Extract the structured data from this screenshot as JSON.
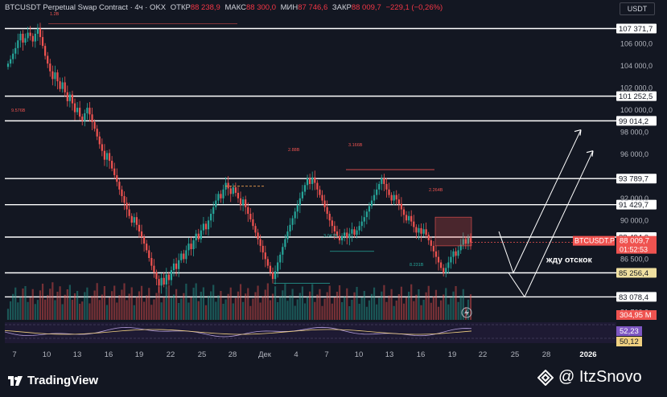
{
  "header": {
    "symbol": "BTCUSDT Perpetual Swap Contract · 4ч · OKX",
    "open_label": "ОТКР",
    "open": "88 238,9",
    "high_label": "МАКС",
    "high": "88 300,0",
    "low_label": "МИН",
    "low": "87 746,6",
    "close_label": "ЗАКР",
    "close": "88 009,7",
    "change": "−229,1 (−0,26%)"
  },
  "currency": "USDT",
  "branding": {
    "platform": "TradingView",
    "author": "@ ItzSnovo"
  },
  "colors": {
    "up": "#26a69a",
    "down": "#ef5350",
    "level": "#ffffff",
    "bg": "#131722"
  },
  "chart_data": {
    "type": "candlestick",
    "timeframe": "4ч",
    "exchange": "OKX",
    "ylim": [
      81000,
      108500
    ],
    "price_axis_ticks": [
      "106 000,0",
      "104 000,0",
      "102 000,0",
      "100 000,0",
      "98 000,0",
      "96 000,0",
      "92 000,0",
      "90 000,0",
      "86 500,0",
      "81 700,0"
    ],
    "x_ticks": [
      "7",
      "10",
      "13",
      "16",
      "19",
      "22",
      "25",
      "28",
      "Дек",
      "4",
      "7",
      "10",
      "13",
      "16",
      "19",
      "22",
      "25",
      "28",
      "2026"
    ],
    "levels": [
      {
        "value": 107371.7,
        "label": "107 371,7"
      },
      {
        "value": 101252.5,
        "label": "101 252,5"
      },
      {
        "value": 99014.2,
        "label": "99 014,2"
      },
      {
        "value": 93789.7,
        "label": "93 789,7"
      },
      {
        "value": 91429.7,
        "label": "91 429,7"
      },
      {
        "value": 88494.0,
        "label": "88 494,0"
      },
      {
        "value": 85256.4,
        "label": "85 256,4",
        "highlight": "#f0e0a0"
      },
      {
        "value": 83078.4,
        "label": "83 078,4"
      }
    ],
    "current_price": {
      "label": "BTCUSDT.P",
      "value": "88 009,7",
      "countdown": "01:52:53"
    },
    "volume_label": "304,95 M",
    "volume_annotations": [
      "1.2B",
      "9.576B",
      "2.88B",
      "3.166B",
      "2.264B",
      "3.047B",
      "8.231B"
    ],
    "close_series": [
      104200,
      104600,
      105100,
      105600,
      106300,
      106900,
      106100,
      106500,
      107000,
      106700,
      106200,
      106900,
      107371,
      106600,
      105800,
      104900,
      104200,
      103500,
      102800,
      103400,
      102600,
      101900,
      102500,
      101600,
      100800,
      101400,
      100600,
      99800,
      100200,
      99400,
      99014,
      99700,
      100200,
      99600,
      98900,
      98300,
      97600,
      96900,
      96300,
      95500,
      96100,
      95400,
      94700,
      94100,
      93500,
      92800,
      92200,
      91600,
      91000,
      90400,
      89800,
      90300,
      89600,
      89000,
      88500,
      87900,
      87300,
      86600,
      85900,
      85300,
      84700,
      84100,
      84800,
      84200,
      85100,
      84600,
      85500,
      86100,
      85600,
      86400,
      87000,
      86500,
      87300,
      87900,
      87400,
      88200,
      88800,
      88300,
      89100,
      89700,
      89200,
      90000,
      90600,
      91200,
      91800,
      92400,
      92000,
      92800,
      93400,
      92900,
      92400,
      93000,
      92500,
      92000,
      91400,
      91900,
      91200,
      90600,
      90100,
      89500,
      88900,
      88300,
      87700,
      87100,
      86500,
      85900,
      85300,
      84700,
      85400,
      86200,
      86900,
      87600,
      88300,
      89000,
      89600,
      90200,
      90800,
      91400,
      92000,
      92600,
      93200,
      93800,
      93300,
      93900,
      93400,
      92800,
      92300,
      91800,
      91200,
      90600,
      90000,
      89500,
      89000,
      88600,
      88200,
      88600,
      88900,
      88400,
      88800,
      89200,
      88700,
      89100,
      89500,
      89900,
      90300,
      90800,
      91300,
      91800,
      92300,
      92800,
      93300,
      93800,
      93300,
      92800,
      92300,
      91800,
      92300,
      91900,
      91500,
      91000,
      90500,
      90000,
      90400,
      89900,
      89400,
      88900,
      89300,
      88800,
      89200,
      88700,
      88200,
      87700,
      87200,
      86700,
      86200,
      85700,
      85256,
      85700,
      86200,
      86700,
      87200,
      86800,
      87300,
      87800,
      88300,
      87900,
      88400,
      88009
    ],
    "projection": {
      "label": "жду отскок",
      "path": [
        [
          89000,
          0
        ],
        [
          85256,
          1
        ],
        [
          95500,
          2
        ]
      ],
      "path2": [
        [
          85256,
          0
        ],
        [
          83078,
          1
        ],
        [
          96800,
          2
        ]
      ]
    },
    "indicator": {
      "values": [
        "52,23",
        "50,12"
      ]
    }
  }
}
